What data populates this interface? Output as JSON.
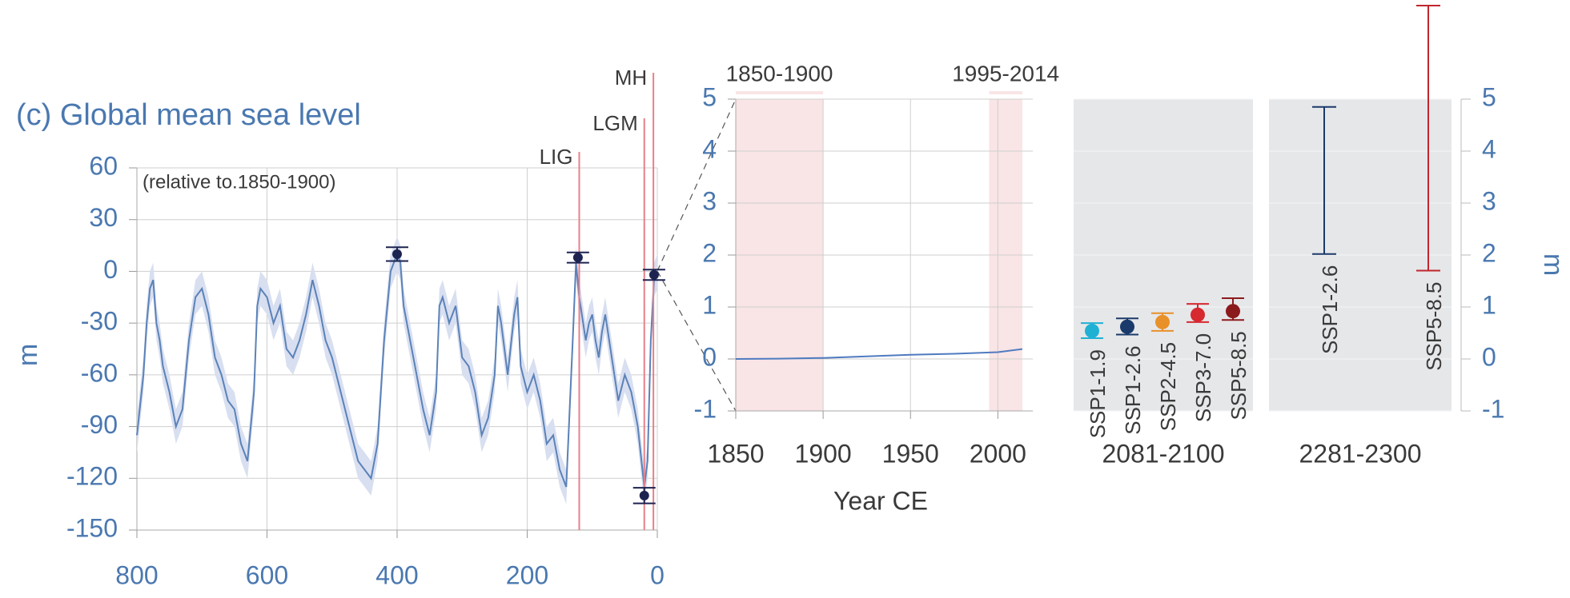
{
  "chart_data": [
    {
      "type": "line",
      "title": "(c) Global mean sea level",
      "annotation": "(relative to.1850-1900)",
      "ylabel": "m",
      "xlim": [
        800,
        0
      ],
      "ylim": [
        -150,
        60
      ],
      "xticks": [
        800,
        600,
        400,
        200,
        0
      ],
      "yticks": [
        -150,
        -120,
        -90,
        -60,
        -30,
        0,
        30,
        60
      ],
      "grid": true,
      "color": "#5b82b8",
      "band_color": "#d8dff0",
      "band_halfwidth": 10,
      "x": [
        800,
        790,
        785,
        780,
        775,
        770,
        765,
        760,
        750,
        740,
        730,
        720,
        710,
        700,
        690,
        680,
        670,
        660,
        650,
        640,
        630,
        620,
        615,
        610,
        600,
        590,
        580,
        570,
        560,
        550,
        540,
        530,
        520,
        510,
        500,
        490,
        480,
        470,
        460,
        450,
        440,
        430,
        420,
        410,
        400,
        395,
        390,
        380,
        370,
        360,
        350,
        340,
        335,
        330,
        320,
        310,
        300,
        290,
        280,
        270,
        260,
        250,
        245,
        240,
        230,
        220,
        215,
        210,
        200,
        190,
        180,
        170,
        160,
        150,
        140,
        130,
        125,
        120,
        110,
        105,
        100,
        95,
        90,
        85,
        80,
        70,
        60,
        50,
        40,
        30,
        20,
        15,
        10,
        5,
        0
      ],
      "values": [
        -95,
        -60,
        -30,
        -10,
        -5,
        -30,
        -40,
        -55,
        -70,
        -90,
        -80,
        -40,
        -15,
        -10,
        -25,
        -50,
        -60,
        -75,
        -80,
        -100,
        -110,
        -70,
        -20,
        -10,
        -15,
        -30,
        -20,
        -45,
        -50,
        -40,
        -25,
        -5,
        -20,
        -40,
        -50,
        -65,
        -80,
        -95,
        -110,
        -115,
        -120,
        -100,
        -40,
        0,
        10,
        5,
        -20,
        -40,
        -60,
        -80,
        -95,
        -70,
        -20,
        -15,
        -30,
        -20,
        -50,
        -55,
        -70,
        -95,
        -85,
        -60,
        -20,
        -30,
        -60,
        -25,
        -15,
        -55,
        -70,
        -60,
        -75,
        -100,
        -95,
        -115,
        -125,
        -40,
        5,
        -15,
        -40,
        -30,
        -25,
        -40,
        -50,
        -35,
        -25,
        -50,
        -75,
        -60,
        -70,
        -90,
        -125,
        -110,
        -40,
        -5,
        0
      ],
      "points": {
        "x": [
          400,
          122,
          20,
          5
        ],
        "values": [
          10,
          8,
          -130,
          -2
        ],
        "errors": [
          4,
          3,
          4.5,
          3
        ],
        "color": "#1c2350"
      },
      "events": {
        "labels": [
          "LIG",
          "LGM",
          "MH"
        ],
        "x": [
          120,
          20,
          6
        ],
        "color": "#e8808a"
      }
    },
    {
      "type": "line",
      "xlabel": "Year CE",
      "xlim": [
        1850,
        2020
      ],
      "ylim": [
        -1,
        5
      ],
      "xticks": [
        1850,
        1900,
        1950,
        2000
      ],
      "yticks": [
        -1,
        0,
        1,
        2,
        3,
        4,
        5
      ],
      "grid": true,
      "color": "#4f7bc0",
      "period_color": "#f9e4e6",
      "periods": [
        {
          "label": "1850-1900",
          "range": [
            1850,
            1900
          ]
        },
        {
          "label": "1995-2014",
          "range": [
            1995,
            2014
          ]
        }
      ],
      "x": [
        1850,
        1875,
        1900,
        1925,
        1950,
        1975,
        2000,
        2014
      ],
      "values": [
        0,
        0.005,
        0.02,
        0.05,
        0.08,
        0.1,
        0.13,
        0.19
      ]
    },
    {
      "type": "errorbar",
      "title": "2081-2100",
      "ylim": [
        -1,
        5
      ],
      "yticks": [
        -1,
        0,
        1,
        2,
        3,
        4,
        5
      ],
      "panel_color": "#e6e7e9",
      "categories": [
        "SSP1-1.9",
        "SSP1-2.6",
        "SSP2-4.5",
        "SSP3-7.0",
        "SSP5-8.5"
      ],
      "values": [
        0.54,
        0.62,
        0.71,
        0.85,
        0.92
      ],
      "low": [
        0.4,
        0.47,
        0.54,
        0.71,
        0.75
      ],
      "high": [
        0.69,
        0.78,
        0.88,
        1.06,
        1.17
      ],
      "colors": [
        "#1fb1d4",
        "#1a3a6b",
        "#e8902a",
        "#d62930",
        "#8b1a1c"
      ]
    },
    {
      "type": "range",
      "title": "2281-2300",
      "ylabel": "m",
      "ylim": [
        -1,
        5
      ],
      "yticks": [
        -1,
        0,
        1,
        2,
        3,
        4,
        5
      ],
      "panel_color": "#e6e7e9",
      "categories": [
        "SSP1-2.6",
        "SSP5-8.5"
      ],
      "low": [
        2.02,
        1.7
      ],
      "high": [
        4.85,
        6.8
      ],
      "colors": [
        "#1a3a6b",
        "#c0262c"
      ]
    }
  ]
}
